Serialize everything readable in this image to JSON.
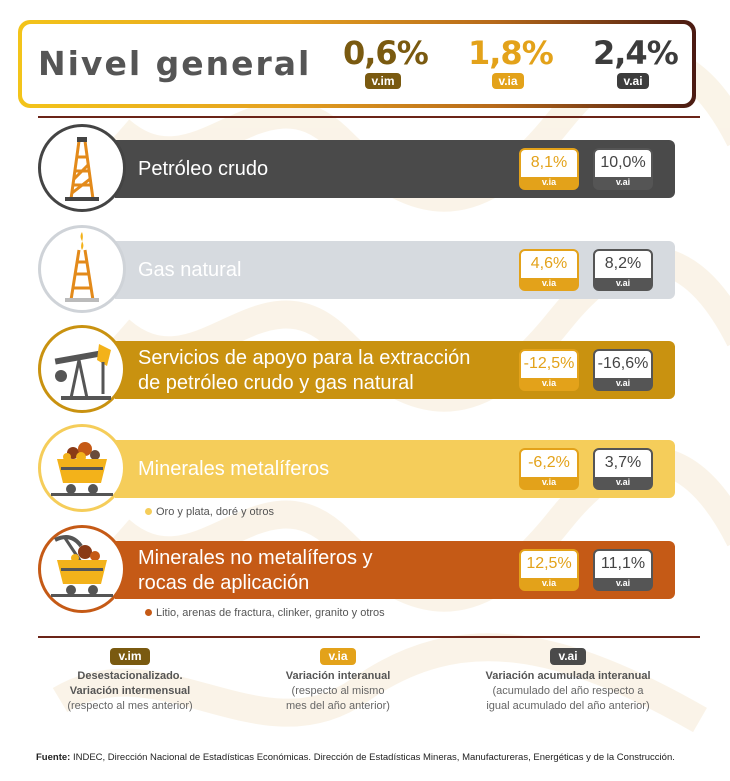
{
  "header": {
    "title": "Nivel general",
    "values": [
      {
        "value": "0,6%",
        "tag": "v.im",
        "color": "#7a5a10"
      },
      {
        "value": "1,8%",
        "tag": "v.ia",
        "color": "#e3a21a"
      },
      {
        "value": "2,4%",
        "tag": "v.ai",
        "color": "#3c3c3c"
      }
    ]
  },
  "rows": [
    {
      "label_line1": "Petróleo crudo",
      "label_line2": "",
      "bar_color": "#4a4a4a",
      "label_color": "#ffffff",
      "via": "8,1%",
      "vai": "10,0%",
      "icon": "oil-derrick-icon",
      "note": ""
    },
    {
      "label_line1": "Gas natural",
      "label_line2": "",
      "bar_color": "#d6dadf",
      "label_color": "#ffffff",
      "via": "4,6%",
      "vai": "8,2%",
      "icon": "gas-derrick-icon",
      "note": ""
    },
    {
      "label_line1": "Servicios de apoyo para la extracción",
      "label_line2": "de petróleo crudo y gas natural",
      "bar_color": "#c99210",
      "label_color": "#ffffff",
      "via": "-12,5%",
      "vai": "-16,6%",
      "icon": "pumpjack-icon",
      "note": ""
    },
    {
      "label_line1": "Minerales metalíferos",
      "label_line2": "",
      "bar_color": "#f5cd5a",
      "label_color": "#ffffff",
      "via": "-6,2%",
      "vai": "3,7%",
      "icon": "mine-cart-icon",
      "note": "Oro y plata, doré y otros"
    },
    {
      "label_line1": "Minerales no metalíferos y",
      "label_line2": "rocas de aplicación",
      "bar_color": "#c55a16",
      "label_color": "#ffffff",
      "via": "12,5%",
      "vai": "11,1%",
      "icon": "mine-cart-pickaxe-icon",
      "note": "Litio, arenas de fractura, clinker, granito y otros"
    }
  ],
  "labels": {
    "via": "v.ia",
    "vai": "v.ai"
  },
  "legend": [
    {
      "tag": "v.im",
      "color": "#7a5a10",
      "line1": "Desestacionalizado.",
      "line2": "Variación intermensual",
      "line3": "(respecto al mes anterior)"
    },
    {
      "tag": "v.ia",
      "color": "#e3a21a",
      "line1": "Variación interanual",
      "line2": "(respecto al mismo",
      "line3": "mes del año anterior)"
    },
    {
      "tag": "v.ai",
      "color": "#4a4a4a",
      "line1": "Variación acumulada interanual",
      "line2": "(acumulado del año respecto a",
      "line3": "igual acumulado del año anterior)"
    }
  ],
  "source": {
    "prefix": "Fuente:",
    "text": " INDEC, Dirección Nacional de Estadísticas Económicas. Dirección de Estadísticas Mineras, Manufactureras, Energéticas y de la Construcción."
  }
}
